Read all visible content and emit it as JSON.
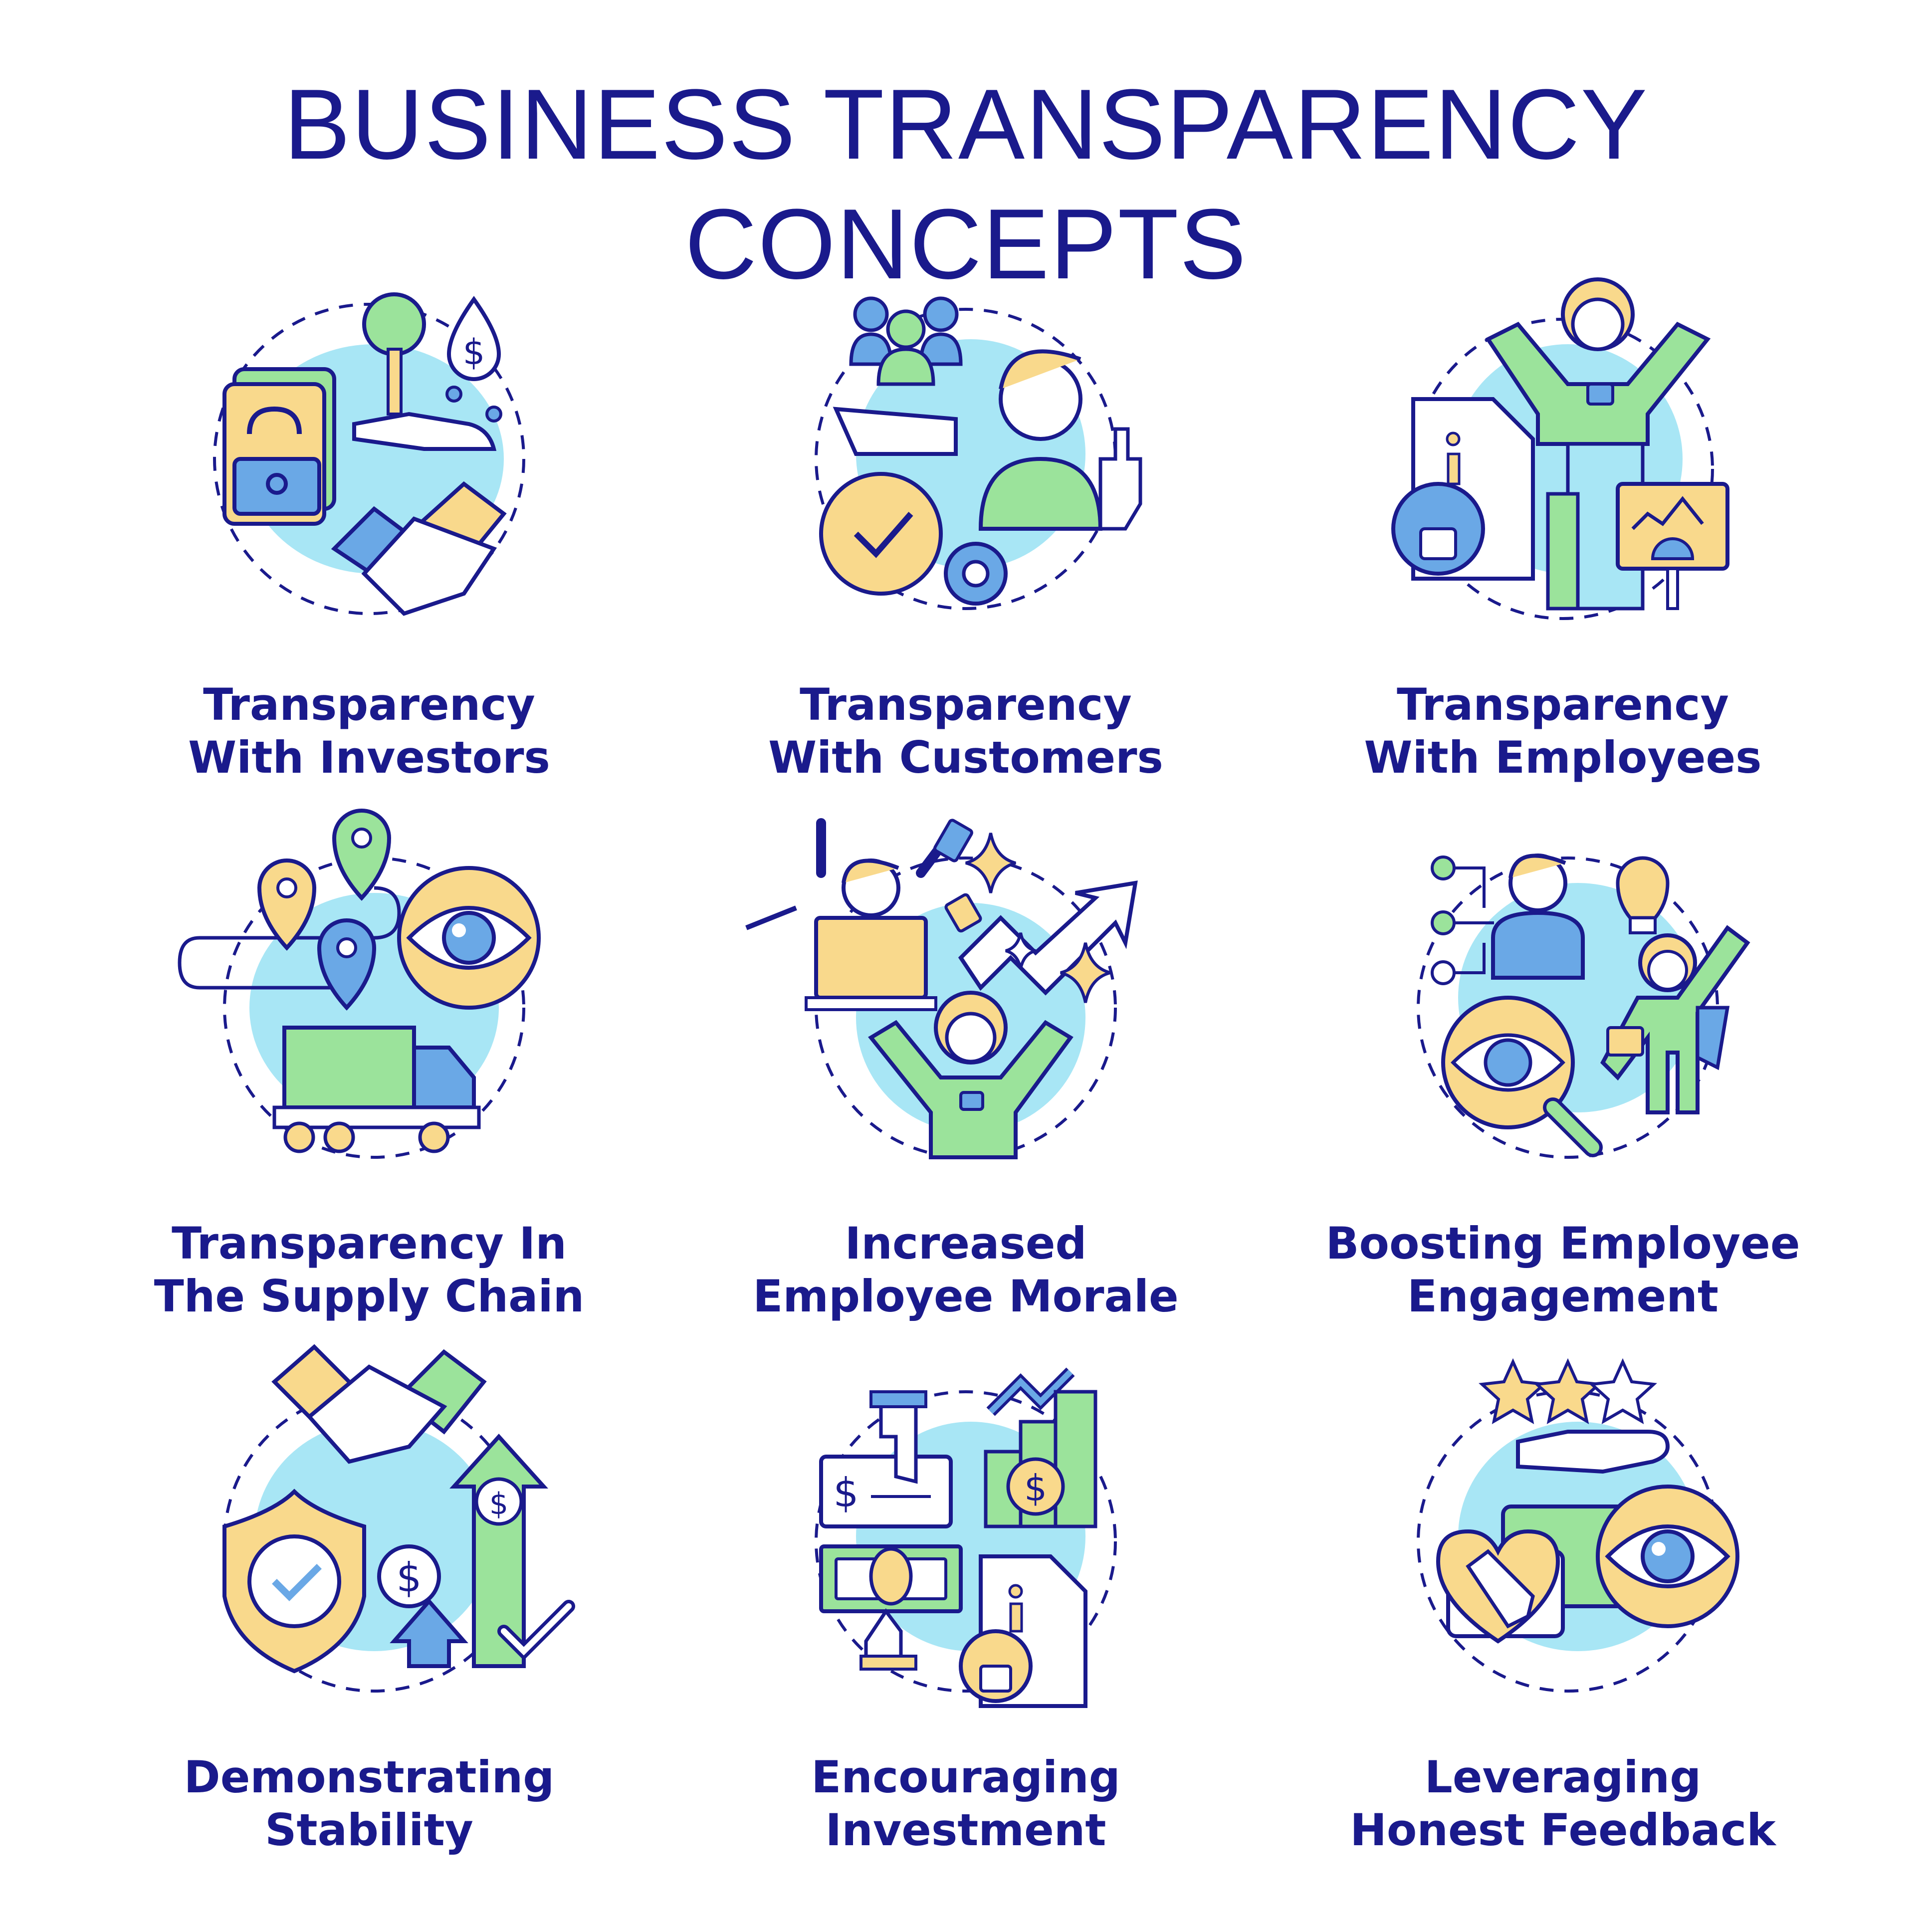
{
  "title": "BUSINESS TRANSPARENCY CONCEPTS",
  "colors": {
    "outline": "#1a1a8c",
    "text": "#1a1a8c",
    "light_blue": "#a8e6f5",
    "green": "#9be39b",
    "yellow": "#f9d98c",
    "blue": "#6aa8e6"
  },
  "items": [
    {
      "line1": "Transparency",
      "line2": "With Investors",
      "icon": "investors-icon"
    },
    {
      "line1": "Transparency",
      "line2": "With Customers",
      "icon": "customers-icon"
    },
    {
      "line1": "Transparency",
      "line2": "With Employees",
      "icon": "employees-icon"
    },
    {
      "line1": "Transparency In",
      "line2": "The Supply Chain",
      "icon": "supply-chain-icon"
    },
    {
      "line1": "Increased",
      "line2": "Employee Morale",
      "icon": "employee-morale-icon"
    },
    {
      "line1": "Boosting Employee",
      "line2": "Engagement",
      "icon": "employee-engagement-icon"
    },
    {
      "line1": "Demonstrating",
      "line2": "Stability",
      "icon": "stability-icon"
    },
    {
      "line1": "Encouraging",
      "line2": "Investment",
      "icon": "investment-icon"
    },
    {
      "line1": "Leveraging",
      "line2": "Honest Feedback",
      "icon": "feedback-icon"
    }
  ]
}
